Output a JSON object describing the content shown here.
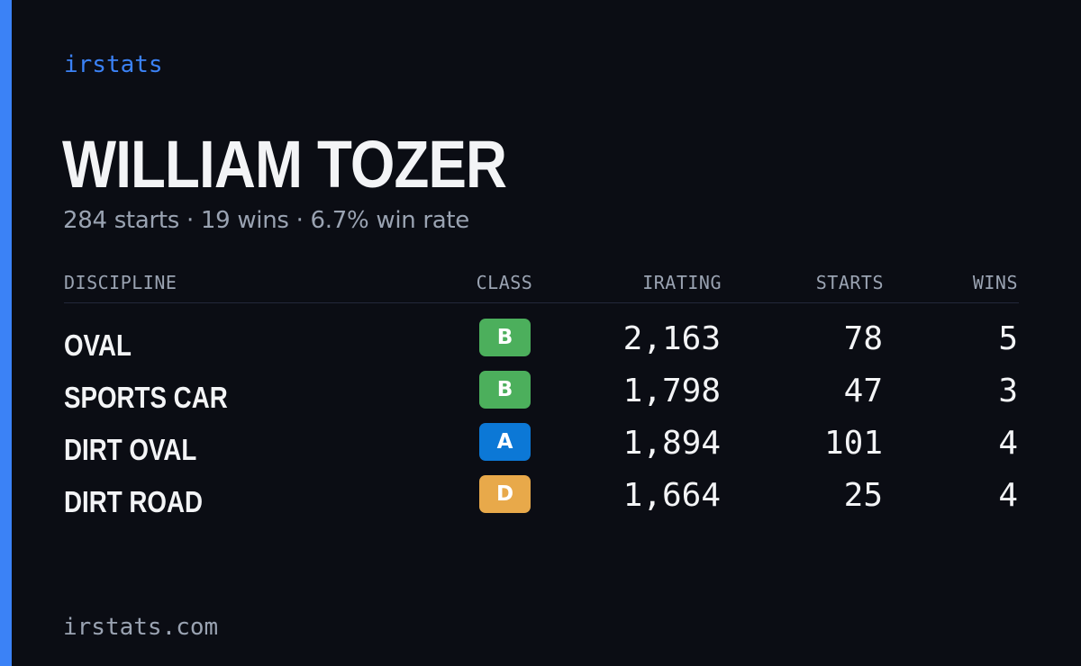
{
  "brand": "irstats",
  "accent_color": "#3b82f6",
  "driver": {
    "name": "WILLIAM TOZER",
    "summary": "284 starts · 19 wins · 6.7% win rate"
  },
  "table": {
    "headers": {
      "discipline": "DISCIPLINE",
      "class": "CLASS",
      "irating": "IRATING",
      "starts": "STARTS",
      "wins": "WINS"
    },
    "rows": [
      {
        "discipline": "OVAL",
        "class": "B",
        "class_color": "#4caf5c",
        "irating": "2,163",
        "starts": "78",
        "wins": "5"
      },
      {
        "discipline": "SPORTS CAR",
        "class": "B",
        "class_color": "#4caf5c",
        "irating": "1,798",
        "starts": "47",
        "wins": "3"
      },
      {
        "discipline": "DIRT OVAL",
        "class": "A",
        "class_color": "#0c78d6",
        "irating": "1,894",
        "starts": "101",
        "wins": "4"
      },
      {
        "discipline": "DIRT ROAD",
        "class": "D",
        "class_color": "#e8a94a",
        "irating": "1,664",
        "starts": "25",
        "wins": "4"
      }
    ]
  },
  "footer": "irstats.com"
}
